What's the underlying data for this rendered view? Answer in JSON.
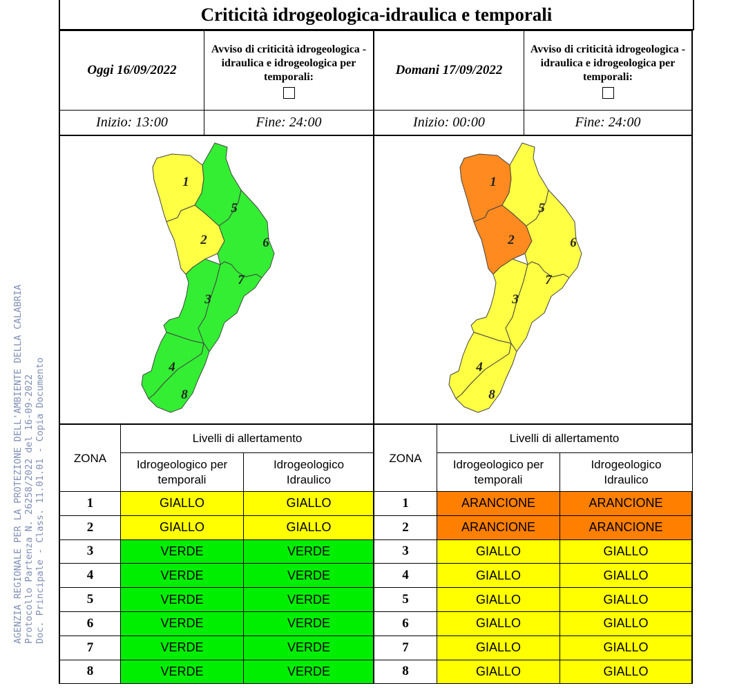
{
  "title": "Criticità idrogeologica-idraulica e temporali",
  "watermark": {
    "line1": "AGENZIA REGIONALE PER LA PROTEZIONE DELL'AMBIENTE DELLA CALABRIA",
    "line2": "Protocollo Partenza N. 26258/2022 del 16-09-2022",
    "line3": "Doc. Principale - Class. 11.01.01 - Copia Documento"
  },
  "colors": {
    "giallo": "#ffff00",
    "verde": "#00ee00",
    "arancione": "#ff7f00",
    "map_giallo": "#ffff44",
    "map_verde": "#33ee33",
    "map_arancione": "#ff8a20"
  },
  "today": {
    "date_label": "Oggi 16/09/2022",
    "avviso_label": "Avviso di criticità idrogeologica - idraulica e idrogeologica per temporali:",
    "start_label": "Inizio: 13:00",
    "end_label": "Fine: 24:00",
    "map_zone_colors": [
      "giallo",
      "giallo",
      "verde",
      "verde",
      "verde",
      "verde",
      "verde",
      "verde"
    ]
  },
  "tomorrow": {
    "date_label": "Domani 17/09/2022",
    "avviso_label": "Avviso di criticità idrogeologica - idraulica e idrogeologica per temporali:",
    "start_label": "Inizio: 00:00",
    "end_label": "Fine: 24:00",
    "map_zone_colors": [
      "arancione",
      "arancione",
      "giallo",
      "giallo",
      "giallo",
      "giallo",
      "giallo",
      "giallo"
    ]
  },
  "table_headers": {
    "zona": "ZONA",
    "livelli": "Livelli di allertamento",
    "col1_line1": "Idrogeologico per",
    "col1_line2": "temporali",
    "col2_line1": "Idrogeologico",
    "col2_line2": "Idraulico"
  },
  "table_today": [
    {
      "zona": "1",
      "temporali": "GIALLO",
      "idraulico": "GIALLO"
    },
    {
      "zona": "2",
      "temporali": "GIALLO",
      "idraulico": "GIALLO"
    },
    {
      "zona": "3",
      "temporali": "VERDE",
      "idraulico": "VERDE"
    },
    {
      "zona": "4",
      "temporali": "VERDE",
      "idraulico": "VERDE"
    },
    {
      "zona": "5",
      "temporali": "VERDE",
      "idraulico": "VERDE"
    },
    {
      "zona": "6",
      "temporali": "VERDE",
      "idraulico": "VERDE"
    },
    {
      "zona": "7",
      "temporali": "VERDE",
      "idraulico": "VERDE"
    },
    {
      "zona": "8",
      "temporali": "VERDE",
      "idraulico": "VERDE"
    }
  ],
  "table_tomorrow": [
    {
      "zona": "1",
      "temporali": "ARANCIONE",
      "idraulico": "ARANCIONE"
    },
    {
      "zona": "2",
      "temporali": "ARANCIONE",
      "idraulico": "ARANCIONE"
    },
    {
      "zona": "3",
      "temporali": "GIALLO",
      "idraulico": "GIALLO"
    },
    {
      "zona": "4",
      "temporali": "GIALLO",
      "idraulico": "GIALLO"
    },
    {
      "zona": "5",
      "temporali": "GIALLO",
      "idraulico": "GIALLO"
    },
    {
      "zona": "6",
      "temporali": "GIALLO",
      "idraulico": "GIALLO"
    },
    {
      "zona": "7",
      "temporali": "GIALLO",
      "idraulico": "GIALLO"
    },
    {
      "zona": "8",
      "temporali": "GIALLO",
      "idraulico": "GIALLO"
    }
  ]
}
